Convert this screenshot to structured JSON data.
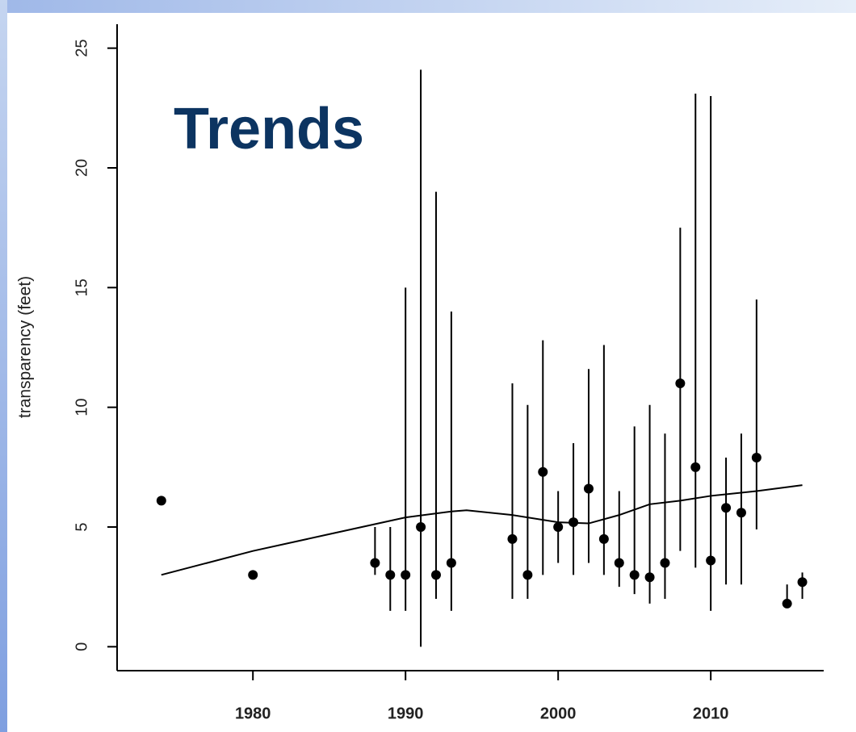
{
  "chart_data": {
    "type": "scatter",
    "title": "Trends",
    "y_label": "transparency (feet)",
    "x": [
      1974,
      1980,
      1988,
      1989,
      1990,
      1991,
      1992,
      1993,
      1997,
      1998,
      1999,
      2000,
      2001,
      2002,
      2003,
      2004,
      2005,
      2006,
      2007,
      2008,
      2009,
      2010,
      2011,
      2012,
      2013,
      2015,
      2016
    ],
    "values": [
      6.1,
      3.0,
      3.5,
      3.0,
      3.0,
      5.0,
      3.0,
      3.5,
      4.5,
      3.0,
      7.3,
      5.0,
      5.2,
      6.6,
      4.5,
      3.5,
      3.0,
      2.9,
      3.5,
      11.0,
      7.5,
      3.6,
      5.8,
      5.6,
      7.9,
      1.8,
      2.7
    ],
    "low": [
      null,
      null,
      3.0,
      1.5,
      1.5,
      0,
      2.0,
      1.5,
      2.0,
      2.0,
      3.0,
      3.5,
      3.0,
      3.5,
      3.0,
      2.5,
      2.2,
      1.8,
      2.0,
      4.0,
      3.3,
      1.5,
      2.6,
      2.6,
      4.9,
      1.8,
      2.0
    ],
    "high": [
      null,
      null,
      5.0,
      5.0,
      15.0,
      24.1,
      19.0,
      14.0,
      11.0,
      10.1,
      12.8,
      6.5,
      8.5,
      11.6,
      12.6,
      6.5,
      9.2,
      10.1,
      8.9,
      17.5,
      23.1,
      23.0,
      7.9,
      8.9,
      14.5,
      2.6,
      3.1
    ],
    "trend": {
      "x": [
        1974,
        1980,
        1985,
        1990,
        1993,
        1994,
        1997,
        2000,
        2002,
        2004,
        2006,
        2008,
        2010,
        2013,
        2016
      ],
      "values": [
        3.0,
        4.0,
        4.7,
        5.4,
        5.65,
        5.7,
        5.5,
        5.2,
        5.15,
        5.5,
        5.95,
        6.1,
        6.3,
        6.5,
        6.75
      ]
    },
    "color": "#000000",
    "xlim": [
      1971.1,
      2017.4
    ],
    "ylim": [
      -1,
      26
    ],
    "xticks": [
      1980,
      1990,
      2000,
      2010
    ],
    "yticks": [
      0,
      5,
      10,
      15,
      20,
      25
    ]
  }
}
